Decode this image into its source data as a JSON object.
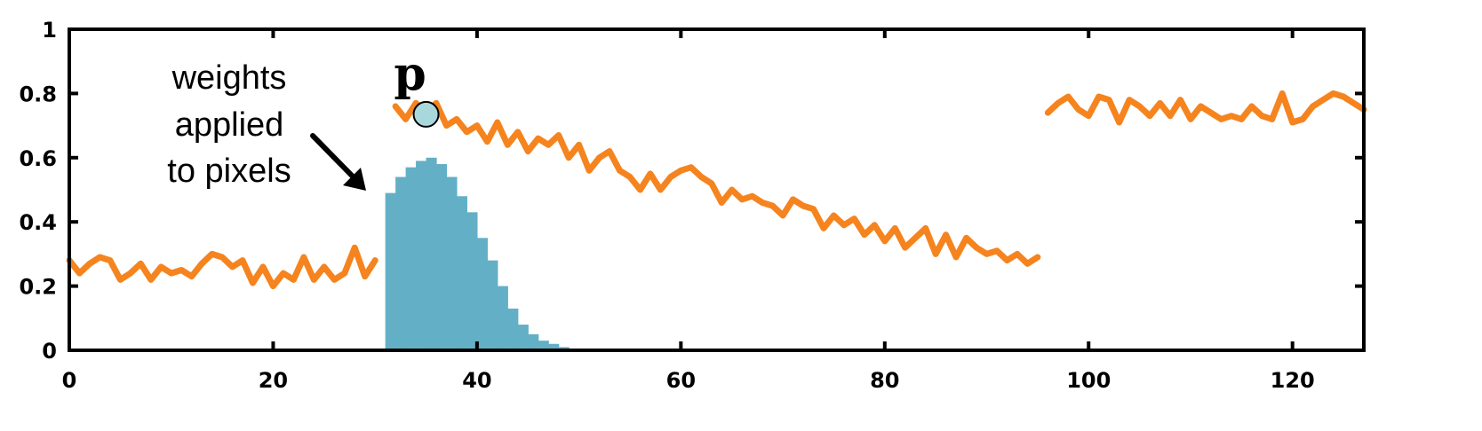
{
  "chart_data": {
    "type": "line",
    "title": "",
    "xlabel": "",
    "ylabel": "",
    "xlim": [
      0,
      127
    ],
    "ylim": [
      0,
      1
    ],
    "x_ticks": [
      0,
      20,
      40,
      60,
      80,
      100,
      120
    ],
    "y_ticks": [
      0,
      0.2,
      0.4,
      0.6,
      0.8,
      1
    ],
    "x_tick_labels": [
      "0",
      "20",
      "40",
      "60",
      "80",
      "100",
      "120"
    ],
    "y_tick_labels": [
      "0",
      "0.2",
      "0.4",
      "0.6",
      "0.8",
      "1"
    ],
    "grid": false,
    "legend": "none",
    "line_color": "#f5841f",
    "bar_color": "#63b0c6",
    "marker_fill": "#a8d8dc",
    "series": [
      {
        "type": "line",
        "segments": [
          {
            "x": [
              0,
              1,
              2,
              3,
              4,
              5,
              6,
              7,
              8,
              9,
              10,
              11,
              12,
              13,
              14,
              15,
              16,
              17,
              18,
              19,
              20,
              21,
              22,
              23,
              24,
              25,
              26,
              27,
              28,
              29,
              30
            ],
            "y": [
              0.28,
              0.24,
              0.27,
              0.29,
              0.28,
              0.22,
              0.24,
              0.27,
              0.22,
              0.26,
              0.24,
              0.25,
              0.23,
              0.27,
              0.3,
              0.29,
              0.26,
              0.28,
              0.21,
              0.26,
              0.2,
              0.24,
              0.22,
              0.29,
              0.22,
              0.26,
              0.22,
              0.24,
              0.32,
              0.23,
              0.28
            ]
          },
          {
            "x": [
              32,
              33,
              34,
              35,
              36,
              37,
              38,
              39,
              40,
              41,
              42,
              43,
              44,
              45,
              46,
              47,
              48,
              49,
              50,
              51,
              52,
              53,
              54,
              55,
              56,
              57,
              58,
              59,
              60,
              61,
              62,
              63,
              64,
              65,
              66,
              67,
              68,
              69,
              70,
              71,
              72,
              73,
              74,
              75,
              76,
              77,
              78,
              79,
              80,
              81,
              82,
              83,
              84,
              85,
              86,
              87,
              88,
              89,
              90,
              91,
              92,
              93,
              94,
              95
            ],
            "y": [
              0.76,
              0.72,
              0.77,
              0.74,
              0.77,
              0.7,
              0.72,
              0.68,
              0.7,
              0.65,
              0.71,
              0.64,
              0.68,
              0.62,
              0.66,
              0.64,
              0.67,
              0.6,
              0.64,
              0.56,
              0.6,
              0.62,
              0.56,
              0.54,
              0.5,
              0.55,
              0.5,
              0.54,
              0.56,
              0.57,
              0.54,
              0.52,
              0.46,
              0.5,
              0.47,
              0.48,
              0.46,
              0.45,
              0.42,
              0.47,
              0.45,
              0.44,
              0.38,
              0.42,
              0.39,
              0.41,
              0.36,
              0.39,
              0.34,
              0.38,
              0.32,
              0.35,
              0.38,
              0.3,
              0.36,
              0.29,
              0.35,
              0.32,
              0.3,
              0.31,
              0.28,
              0.3,
              0.27,
              0.29
            ]
          },
          {
            "x": [
              96,
              97,
              98,
              99,
              100,
              101,
              102,
              103,
              104,
              105,
              106,
              107,
              108,
              109,
              110,
              111,
              112,
              113,
              114,
              115,
              116,
              117,
              118,
              119,
              120,
              121,
              122,
              123,
              124,
              125,
              126,
              127
            ],
            "y": [
              0.74,
              0.77,
              0.79,
              0.75,
              0.73,
              0.79,
              0.78,
              0.71,
              0.78,
              0.76,
              0.73,
              0.77,
              0.73,
              0.78,
              0.72,
              0.76,
              0.74,
              0.72,
              0.73,
              0.72,
              0.76,
              0.73,
              0.72,
              0.8,
              0.71,
              0.72,
              0.76,
              0.78,
              0.8,
              0.79,
              0.77,
              0.75
            ]
          }
        ]
      },
      {
        "type": "bar",
        "x_start": 31,
        "bin_width": 1,
        "values": [
          0.49,
          0.54,
          0.57,
          0.59,
          0.6,
          0.58,
          0.54,
          0.48,
          0.43,
          0.35,
          0.28,
          0.2,
          0.13,
          0.08,
          0.05,
          0.03,
          0.02,
          0.01,
          0.004
        ]
      }
    ],
    "marker": {
      "x": 35,
      "y": 0.735,
      "label": "p"
    },
    "annotations": [
      {
        "lines": [
          "weights",
          "applied",
          "to pixels"
        ]
      }
    ]
  }
}
